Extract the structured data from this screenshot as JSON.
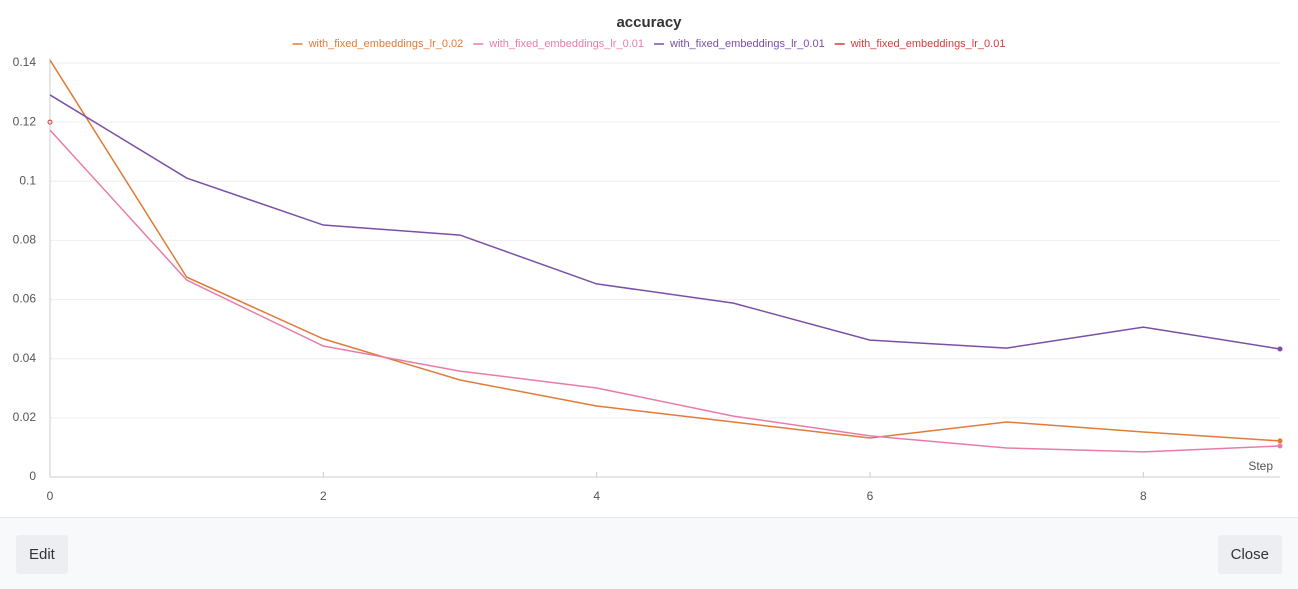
{
  "chart_data": {
    "type": "line",
    "title": "accuracy",
    "x_label": "Step",
    "x": [
      0,
      1,
      2,
      3,
      4,
      5,
      6,
      7,
      8,
      9
    ],
    "xlim": [
      0,
      9
    ],
    "xticks": [
      0,
      2,
      4,
      6,
      8
    ],
    "ylim": [
      0,
      0.14
    ],
    "yticks": [
      0,
      0.02,
      0.04,
      0.06,
      0.08,
      0.1,
      0.12,
      0.14
    ],
    "grid": true,
    "legend": "top",
    "series": [
      {
        "name": "with_fixed_embeddings_lr_0.02",
        "color": "#e07b39",
        "values": [
          0.141,
          0.0676,
          0.0467,
          0.0328,
          0.024,
          0.0186,
          0.0132,
          0.0186,
          0.0152,
          0.0122
        ]
      },
      {
        "name": "with_fixed_embeddings_lr_0.01",
        "color": "#e87ca8",
        "values": [
          0.1173,
          0.0666,
          0.0443,
          0.0358,
          0.0301,
          0.0206,
          0.0139,
          0.0098,
          0.0085,
          0.0105
        ]
      },
      {
        "name": "with_fixed_embeddings_lr_0.01",
        "color": "#7b4fa6",
        "values": [
          0.1292,
          0.1011,
          0.0852,
          0.0818,
          0.0653,
          0.0588,
          0.0463,
          0.0436,
          0.0507,
          0.0433
        ]
      },
      {
        "name": "with_fixed_embeddings_lr_0.01",
        "color": "#d63b3b",
        "values": [
          0.12,
          null,
          null,
          null,
          null,
          null,
          null,
          null,
          null,
          null
        ]
      }
    ]
  },
  "buttons": {
    "edit": "Edit",
    "close": "Close"
  }
}
